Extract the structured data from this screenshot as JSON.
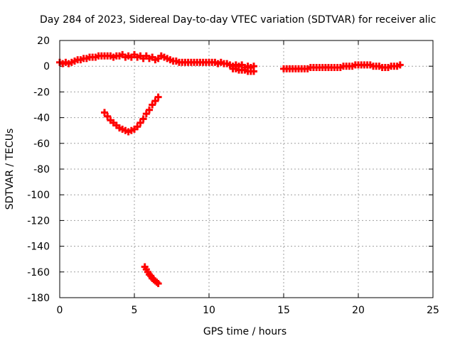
{
  "chart_data": {
    "type": "scatter",
    "title": "Day 284 of 2023, Sidereal Day-to-day VTEC variation (SDTVAR) for receiver alic",
    "xlabel": "GPS time / hours",
    "ylabel": "SDTVAR / TECUs",
    "xlim": [
      0,
      25
    ],
    "ylim": [
      -180,
      20
    ],
    "xticks": [
      0,
      5,
      10,
      15,
      20,
      25
    ],
    "yticks": [
      20,
      0,
      -20,
      -40,
      -60,
      -80,
      -100,
      -120,
      -140,
      -160,
      -180
    ],
    "grid": true,
    "legend": "none",
    "marker": "plus",
    "color": "#ff0000",
    "series": [
      {
        "x": [
          0.0,
          0.2,
          0.4,
          0.6,
          0.8,
          1.0,
          1.2,
          1.4,
          1.6,
          1.8,
          2.0,
          2.2,
          2.4,
          2.6,
          2.8,
          3.0,
          3.2,
          3.4,
          3.6,
          3.8,
          4.0,
          4.2,
          4.4,
          4.6,
          4.8,
          5.0,
          5.2,
          5.4,
          5.6,
          5.8,
          6.0,
          6.2,
          6.4,
          6.6,
          6.8,
          7.0,
          7.2,
          7.4,
          7.6,
          7.8,
          8.0,
          8.2,
          8.4,
          8.6,
          8.8,
          9.0,
          9.2,
          9.4,
          9.6,
          9.8,
          10.0,
          10.2,
          10.4,
          10.6,
          10.8,
          11.0,
          11.2,
          11.4,
          11.6,
          11.8,
          12.0,
          12.2,
          12.4,
          12.6,
          12.8,
          13.0,
          15.0,
          15.2,
          15.4,
          15.6,
          15.8,
          16.0,
          16.2,
          16.4,
          16.6,
          16.8,
          17.0,
          17.2,
          17.4,
          17.6,
          17.8,
          18.0,
          18.2,
          18.4,
          18.6,
          18.8,
          19.0,
          19.2,
          19.4,
          19.6,
          19.8,
          20.0,
          20.2,
          20.4,
          20.6,
          20.8,
          21.0,
          21.2,
          21.4,
          21.6,
          21.8,
          22.0,
          22.2,
          22.4,
          22.6,
          22.8
        ],
        "y": [
          3,
          2,
          3,
          2,
          3,
          4,
          5,
          5,
          6,
          6,
          7,
          7,
          7,
          8,
          8,
          8,
          8,
          8,
          7,
          8,
          8,
          9,
          7,
          8,
          7,
          9,
          7,
          8,
          6,
          8,
          6,
          7,
          5,
          6,
          8,
          7,
          6,
          5,
          4,
          4,
          3,
          3,
          3,
          3,
          3,
          3,
          3,
          3,
          3,
          3,
          3,
          3,
          3,
          2,
          3,
          2,
          2,
          1,
          0,
          1,
          0,
          1,
          -1,
          0,
          -1,
          0,
          -2,
          -2,
          -2,
          -2,
          -2,
          -2,
          -2,
          -2,
          -2,
          -1,
          -1,
          -1,
          -1,
          -1,
          -1,
          -1,
          -1,
          -1,
          -1,
          -1,
          0,
          0,
          0,
          0,
          1,
          1,
          1,
          1,
          1,
          1,
          0,
          0,
          0,
          -1,
          -1,
          -1,
          0,
          0,
          0,
          1
        ]
      },
      {
        "x": [
          11.6,
          11.8,
          12.0,
          12.2,
          12.4,
          12.6,
          12.8,
          13.0
        ],
        "y": [
          -2,
          -2,
          -3,
          -3,
          -3,
          -4,
          -4,
          -4
        ]
      },
      {
        "x": [
          3.0,
          3.2,
          3.4,
          3.6,
          3.8,
          4.0,
          4.2,
          4.4,
          4.6,
          4.8,
          5.0,
          5.2,
          5.4,
          5.6,
          5.8,
          6.0,
          6.2,
          6.4,
          6.6
        ],
        "y": [
          -36,
          -39,
          -42,
          -44,
          -46,
          -48,
          -49,
          -50,
          -51,
          -50,
          -49,
          -47,
          -44,
          -41,
          -37,
          -34,
          -30,
          -27,
          -24
        ]
      },
      {
        "x": [
          5.7,
          5.8,
          5.9,
          6.0,
          6.1,
          6.2,
          6.3,
          6.4,
          6.5,
          6.6
        ],
        "y": [
          -156,
          -158,
          -160,
          -162,
          -163,
          -165,
          -166,
          -167,
          -168,
          -169
        ]
      }
    ]
  }
}
